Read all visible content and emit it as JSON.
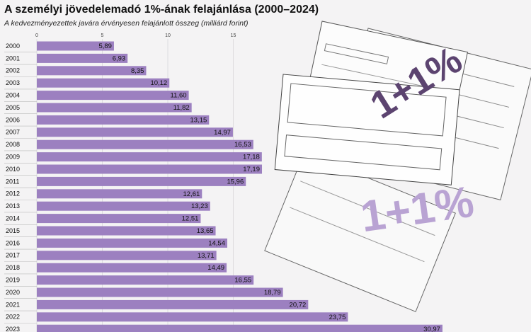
{
  "chart_data": {
    "type": "bar",
    "orientation": "horizontal",
    "title": "A személyi jövedelemadó 1%-ának felajánlása (2000–2024)",
    "subtitle": "A kedvezményezettek javára érvényesen felajánlott összeg (milliárd forint)",
    "categories": [
      "2000",
      "2001",
      "2002",
      "2003",
      "2004",
      "2005",
      "2006",
      "2007",
      "2008",
      "2009",
      "2010",
      "2011",
      "2012",
      "2013",
      "2014",
      "2015",
      "2016",
      "2017",
      "2018",
      "2019",
      "2020",
      "2021",
      "2022",
      "2023"
    ],
    "values": [
      5.89,
      6.93,
      8.35,
      10.12,
      11.6,
      11.82,
      13.15,
      14.97,
      16.53,
      17.18,
      17.19,
      15.96,
      12.61,
      13.23,
      12.51,
      13.65,
      14.54,
      13.71,
      14.49,
      16.55,
      18.79,
      20.72,
      23.75,
      30.97
    ],
    "value_labels": [
      "5,89",
      "6,93",
      "8,35",
      "10,12",
      "11,60",
      "11,82",
      "13,15",
      "14,97",
      "16,53",
      "17,18",
      "17,19",
      "15,96",
      "12,61",
      "13,23",
      "12,51",
      "13,65",
      "14,54",
      "13,71",
      "14,49",
      "16,55",
      "18,79",
      "20,72",
      "23,75",
      "30,97"
    ],
    "color": "#9c80c0",
    "xlim": [
      0,
      35
    ],
    "xticks": [
      0,
      5,
      10,
      15
    ],
    "grid": true,
    "annotations": [
      "1+1%",
      "1+1%"
    ]
  }
}
